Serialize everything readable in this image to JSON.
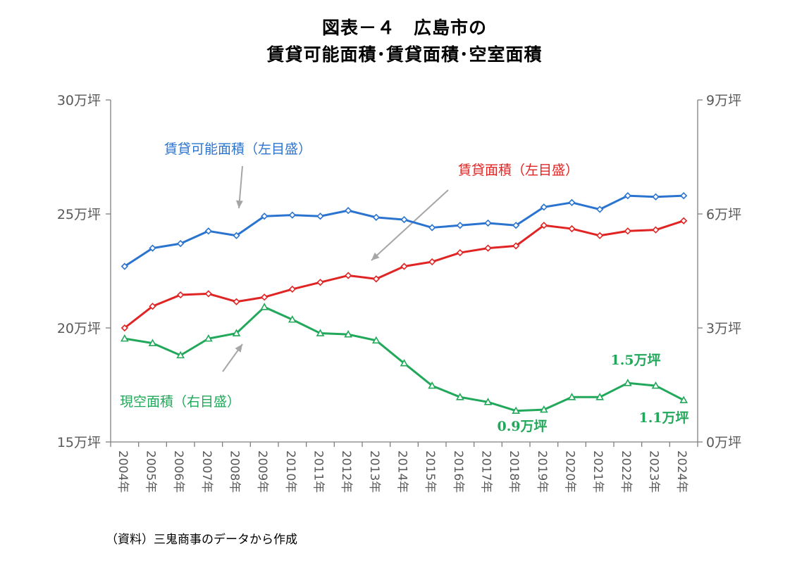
{
  "chart_data": {
    "type": "line",
    "title_line1": "図表－４　広島市の",
    "title_line2": "賃貸可能面積･賃貸面積･空室面積",
    "categories": [
      "2004年",
      "2005年",
      "2006年",
      "2007年",
      "2008年",
      "2009年",
      "2010年",
      "2011年",
      "2012年",
      "2013年",
      "2014年",
      "2015年",
      "2016年",
      "2017年",
      "2018年",
      "2019年",
      "2020年",
      "2021年",
      "2022年",
      "2023年",
      "2024年"
    ],
    "left_axis": {
      "min": 15,
      "max": 30,
      "ticks": [
        "15万坪",
        "20万坪",
        "25万坪",
        "30万坪"
      ],
      "tick_values": [
        15,
        20,
        25,
        30
      ]
    },
    "right_axis": {
      "min": 0,
      "max": 9,
      "ticks": [
        "0万坪",
        "3万坪",
        "6万坪",
        "9万坪"
      ],
      "tick_values": [
        0,
        3,
        6,
        9
      ]
    },
    "series": [
      {
        "name": "賃貸可能面積（左目盛）",
        "axis": "left",
        "color": "#2a74d0",
        "marker": "diamond",
        "values": [
          22.7,
          23.5,
          23.7,
          24.25,
          24.05,
          24.9,
          24.95,
          24.9,
          25.15,
          24.85,
          24.75,
          24.4,
          24.5,
          24.6,
          24.5,
          25.3,
          25.5,
          25.2,
          25.8,
          25.75,
          25.8
        ]
      },
      {
        "name": "賃貸面積（左目盛）",
        "axis": "left",
        "color": "#e02424",
        "marker": "diamond",
        "values": [
          20.0,
          20.95,
          21.45,
          21.5,
          21.15,
          21.35,
          21.7,
          22.0,
          22.3,
          22.15,
          22.7,
          22.9,
          23.3,
          23.5,
          23.6,
          24.5,
          24.35,
          24.05,
          24.25,
          24.3,
          24.7
        ]
      },
      {
        "name": "現空面積（右目盛）",
        "axis": "right",
        "color": "#22a85a",
        "marker": "triangle",
        "values": [
          2.72,
          2.6,
          2.28,
          2.72,
          2.86,
          3.55,
          3.22,
          2.86,
          2.83,
          2.67,
          2.07,
          1.48,
          1.18,
          1.05,
          0.82,
          0.85,
          1.18,
          1.18,
          1.55,
          1.48,
          1.1
        ]
      }
    ],
    "annotations": {
      "label_high": "1.5万坪",
      "label_low": "0.9万坪",
      "label_last": "1.1万坪"
    },
    "source_note": "（資料）三鬼商事のデータから作成"
  }
}
